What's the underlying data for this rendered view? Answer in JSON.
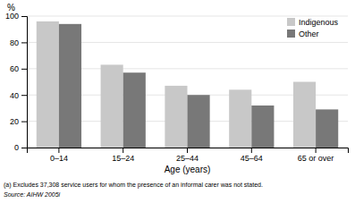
{
  "chart_data": {
    "type": "bar",
    "categories": [
      "0–14",
      "15–24",
      "25–44",
      "45–64",
      "65 or over"
    ],
    "series": [
      {
        "name": "Indigenous",
        "color": "#c8c8c8",
        "values": [
          96,
          63,
          47,
          44,
          50
        ]
      },
      {
        "name": "Other",
        "color": "#787878",
        "values": [
          94,
          57,
          40,
          32,
          29
        ]
      }
    ],
    "y_label": "%",
    "x_label": "Age (years)",
    "ylim": [
      0,
      100
    ],
    "yticks": [
      0,
      20,
      40,
      60,
      80,
      100
    ],
    "grid": true,
    "legend": "upper right",
    "annotations": [
      "(a) Excludes 37,308 service users for whom the presence of an informal carer was not stated.",
      "Source: AIHW 2005i"
    ]
  }
}
